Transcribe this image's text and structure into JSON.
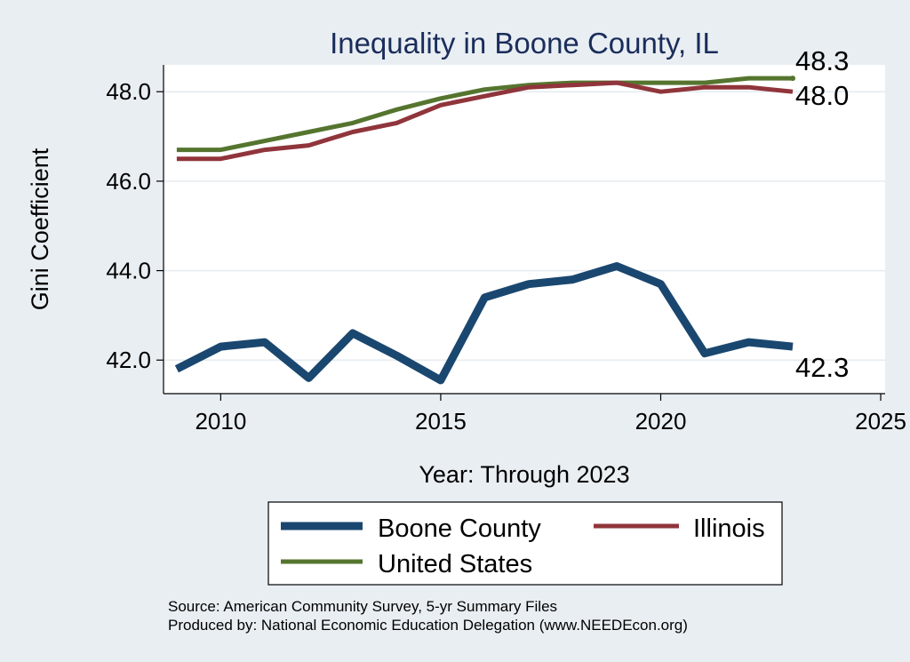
{
  "chart_data": {
    "type": "line",
    "title": "Inequality in Boone County, IL",
    "xlabel": "Year: Through 2023",
    "ylabel": "Gini Coefficient",
    "xlim": [
      2008.7,
      2025.1
    ],
    "ylim": [
      41.25,
      48.6
    ],
    "xticks": [
      2010,
      2015,
      2020,
      2025
    ],
    "yticks": [
      42.0,
      44.0,
      46.0,
      48.0
    ],
    "xtick_labels": [
      "2010",
      "2015",
      "2020",
      "2025"
    ],
    "ytick_labels": [
      "42.0",
      "44.0",
      "46.0",
      "48.0"
    ],
    "grid": true,
    "legend_position": "bottom",
    "series": [
      {
        "name": "Boone County",
        "color": "#1a476f",
        "x": [
          2009,
          2010,
          2011,
          2012,
          2013,
          2014,
          2015,
          2016,
          2017,
          2018,
          2019,
          2020,
          2021,
          2022,
          2023
        ],
        "values": [
          41.8,
          42.3,
          42.4,
          41.6,
          42.6,
          42.1,
          41.55,
          43.4,
          43.7,
          43.8,
          44.1,
          43.7,
          42.15,
          42.4,
          42.3
        ],
        "end_label": "42.3"
      },
      {
        "name": "Illinois",
        "color": "#90353b",
        "x": [
          2009,
          2010,
          2011,
          2012,
          2013,
          2014,
          2015,
          2016,
          2017,
          2018,
          2019,
          2020,
          2021,
          2022,
          2023
        ],
        "values": [
          46.5,
          46.5,
          46.7,
          46.8,
          47.1,
          47.3,
          47.7,
          47.9,
          48.1,
          48.15,
          48.2,
          48.0,
          48.1,
          48.1,
          48.0
        ],
        "end_label": "48.0"
      },
      {
        "name": "United States",
        "color": "#55752f",
        "x": [
          2009,
          2010,
          2011,
          2012,
          2013,
          2014,
          2015,
          2016,
          2017,
          2018,
          2019,
          2020,
          2021,
          2022,
          2023
        ],
        "values": [
          46.7,
          46.7,
          46.9,
          47.1,
          47.3,
          47.6,
          47.85,
          48.05,
          48.15,
          48.2,
          48.2,
          48.2,
          48.2,
          48.3,
          48.3
        ],
        "end_label": "48.3"
      }
    ]
  },
  "footer": {
    "source": "Source: American Community Survey, 5-yr Summary Files",
    "produced_by": "Produced by: National Economic Education Delegation (www.NEEDEcon.org)"
  }
}
